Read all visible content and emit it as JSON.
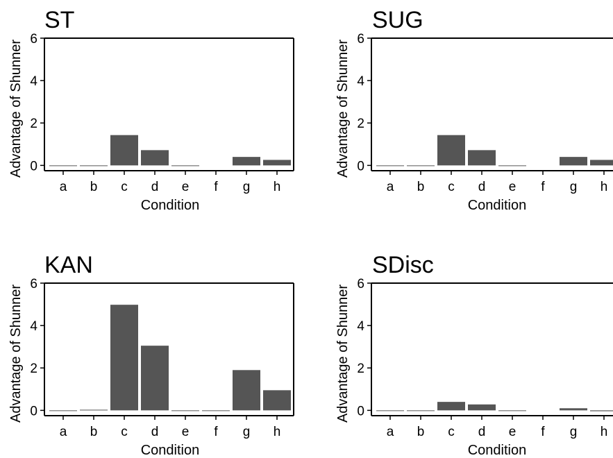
{
  "chart_data": [
    {
      "type": "bar",
      "title": "ST",
      "xlabel": "Condition",
      "ylabel": "Advantage of Shunner",
      "ylim": [
        -0.25,
        6
      ],
      "yticks": [
        0,
        2,
        4,
        6
      ],
      "grid": false,
      "categories": [
        "a",
        "b",
        "c",
        "d",
        "e",
        "f",
        "g",
        "h"
      ],
      "values": [
        -0.02,
        -0.02,
        1.43,
        0.72,
        -0.02,
        0,
        0.4,
        0.26
      ],
      "color": "#555555"
    },
    {
      "type": "bar",
      "title": "SUG",
      "xlabel": "Condition",
      "ylabel": "Advantage of Shunner",
      "ylim": [
        -0.25,
        6
      ],
      "yticks": [
        0,
        2,
        4,
        6
      ],
      "grid": false,
      "categories": [
        "a",
        "b",
        "c",
        "d",
        "e",
        "f",
        "g",
        "h"
      ],
      "values": [
        -0.02,
        -0.02,
        1.43,
        0.72,
        -0.02,
        0,
        0.4,
        0.26
      ],
      "color": "#555555"
    },
    {
      "type": "bar",
      "title": "KAN",
      "xlabel": "Condition",
      "ylabel": "Advantage of Shunner",
      "ylim": [
        -0.25,
        6
      ],
      "yticks": [
        0,
        2,
        4,
        6
      ],
      "grid": false,
      "categories": [
        "a",
        "b",
        "c",
        "d",
        "e",
        "f",
        "g",
        "h"
      ],
      "values": [
        -0.02,
        0.03,
        4.98,
        3.05,
        -0.02,
        -0.02,
        1.9,
        0.95
      ],
      "color": "#555555"
    },
    {
      "type": "bar",
      "title": "SDisc",
      "xlabel": "Condition",
      "ylabel": "Advantage of Shunner",
      "ylim": [
        -0.25,
        6
      ],
      "yticks": [
        0,
        2,
        4,
        6
      ],
      "grid": false,
      "categories": [
        "a",
        "b",
        "c",
        "d",
        "e",
        "f",
        "g",
        "h"
      ],
      "values": [
        -0.02,
        -0.03,
        0.4,
        0.28,
        -0.02,
        0,
        0.1,
        -0.04
      ],
      "color": "#555555"
    }
  ]
}
